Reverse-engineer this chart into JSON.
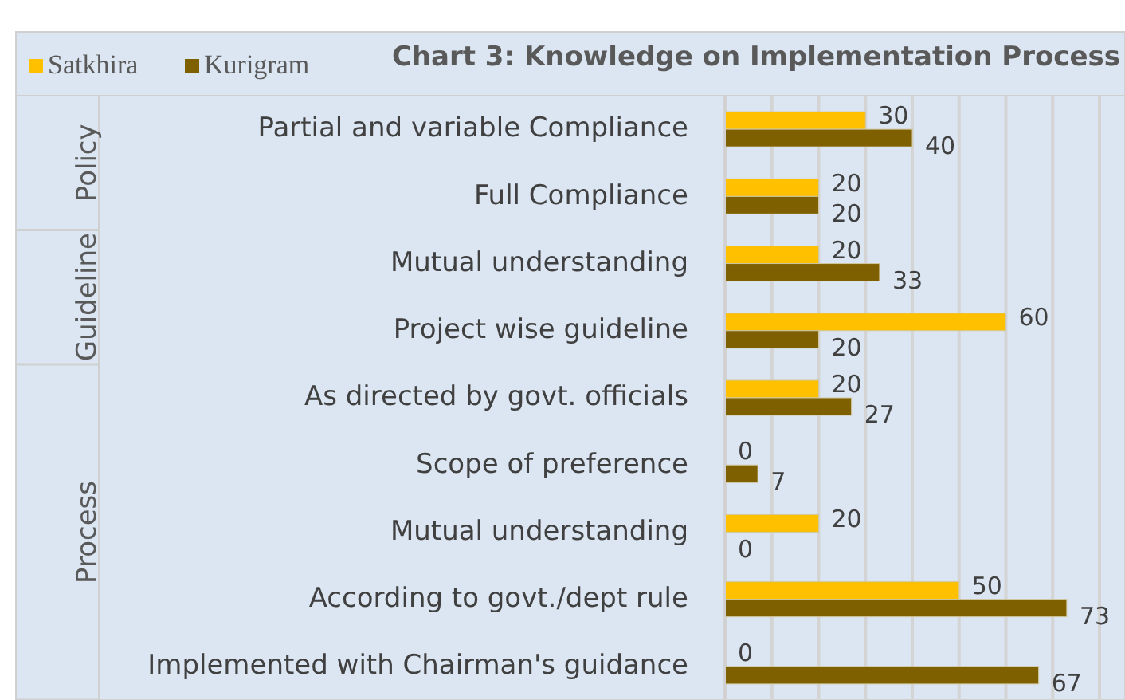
{
  "chart_data": {
    "type": "bar",
    "orientation": "horizontal",
    "title": "Chart 3: Knowledge on Implementation Process",
    "categories": [
      "Partial and variable Compliance",
      "Full Compliance",
      "Mutual understanding",
      "Project wise guideline",
      "As directed by govt. officials",
      "Scope of preference",
      "Mutual understanding",
      "According to govt./dept rule",
      "Implemented with Chairman's guidance"
    ],
    "series": [
      {
        "name": "Satkhira",
        "color": "#ffc000",
        "values": [
          30,
          20,
          20,
          60,
          20,
          0,
          20,
          50,
          0
        ]
      },
      {
        "name": "Kurigram",
        "color": "#7f6000",
        "values": [
          40,
          20,
          33,
          20,
          27,
          7,
          0,
          73,
          67
        ]
      }
    ],
    "xlim": [
      0,
      80
    ],
    "xticks": [
      {
        "value": 0,
        "label": null
      },
      {
        "value": 10,
        "label": null
      },
      {
        "value": 20,
        "label": null
      },
      {
        "value": 30,
        "label": null
      },
      {
        "value": 40,
        "label": null
      },
      {
        "value": 50,
        "label": null
      },
      {
        "value": 60,
        "label": null
      },
      {
        "value": 70,
        "label": null
      },
      {
        "value": 80,
        "label": null
      }
    ],
    "grid": "x",
    "data_labels": true,
    "legend": "top left",
    "annotations": [
      "Policy",
      "Guideline",
      "Process"
    ]
  }
}
